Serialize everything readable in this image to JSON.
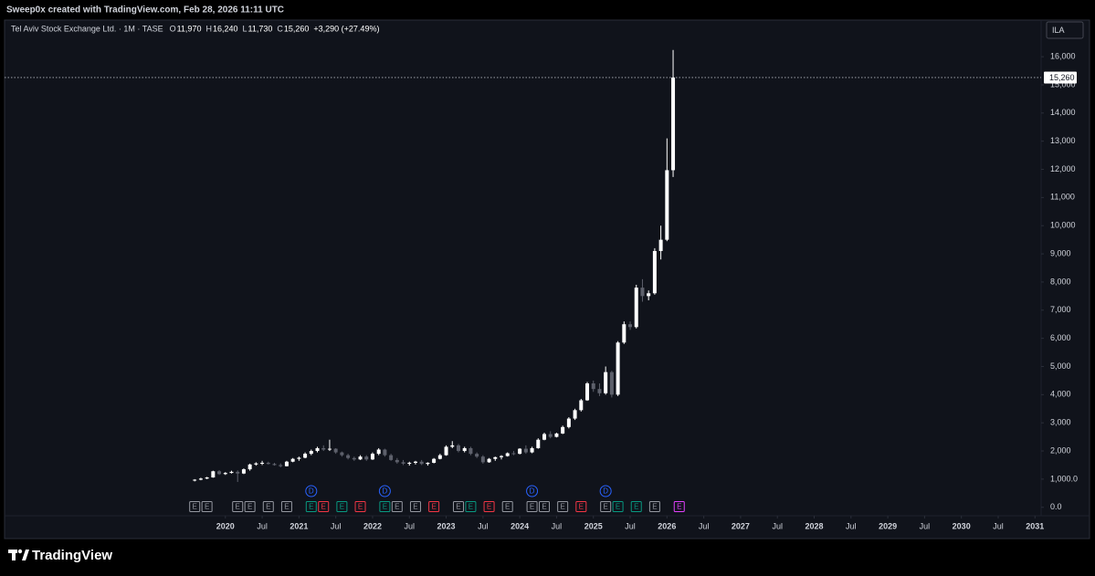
{
  "header": {
    "credit": "Sweep0x created with TradingView.com, Feb 28, 2026 11:11 UTC"
  },
  "branding": {
    "logo_text": "TradingView"
  },
  "currency_button": "ILA",
  "legend": {
    "symbol": "Tel Aviv Stock Exchange Ltd. · 1M · TASE",
    "fields": [
      {
        "key": "O",
        "value": "11,970"
      },
      {
        "key": "H",
        "value": "16,240"
      },
      {
        "key": "L",
        "value": "11,730"
      },
      {
        "key": "C",
        "value": "15,260"
      }
    ],
    "change": "+3,290 (+27.49%)"
  },
  "chart_data": {
    "type": "candlestick",
    "grid": false,
    "xlim": [
      "2017-01",
      "2031-02"
    ],
    "ylim": [
      -300,
      17300
    ],
    "yticks": [
      {
        "value": 0,
        "label": "0.0"
      },
      {
        "value": 1000,
        "label": "1,000.0"
      },
      {
        "value": 2000,
        "label": "2,000"
      },
      {
        "value": 3000,
        "label": "3,000"
      },
      {
        "value": 4000,
        "label": "4,000"
      },
      {
        "value": 5000,
        "label": "5,000"
      },
      {
        "value": 6000,
        "label": "6,000"
      },
      {
        "value": 7000,
        "label": "7,000"
      },
      {
        "value": 8000,
        "label": "8,000"
      },
      {
        "value": 9000,
        "label": "9,000"
      },
      {
        "value": 10000,
        "label": "10,000"
      },
      {
        "value": 11000,
        "label": "11,000"
      },
      {
        "value": 12000,
        "label": "12,000"
      },
      {
        "value": 13000,
        "label": "13,000"
      },
      {
        "value": 14000,
        "label": "14,000"
      },
      {
        "value": 15000,
        "label": "15,000"
      },
      {
        "value": 16000,
        "label": "16,000"
      }
    ],
    "xticks": [
      {
        "value": "2020-01",
        "label": "2020"
      },
      {
        "value": "2020-07",
        "label": "Jul"
      },
      {
        "value": "2021-01",
        "label": "2021"
      },
      {
        "value": "2021-07",
        "label": "Jul"
      },
      {
        "value": "2022-01",
        "label": "2022"
      },
      {
        "value": "2022-07",
        "label": "Jul"
      },
      {
        "value": "2023-01",
        "label": "2023"
      },
      {
        "value": "2023-07",
        "label": "Jul"
      },
      {
        "value": "2024-01",
        "label": "2024"
      },
      {
        "value": "2024-07",
        "label": "Jul"
      },
      {
        "value": "2025-01",
        "label": "2025"
      },
      {
        "value": "2025-07",
        "label": "Jul"
      },
      {
        "value": "2026-01",
        "label": "2026"
      },
      {
        "value": "2026-07",
        "label": "Jul"
      },
      {
        "value": "2027-01",
        "label": "2027"
      },
      {
        "value": "2027-07",
        "label": "Jul"
      },
      {
        "value": "2028-01",
        "label": "2028"
      },
      {
        "value": "2028-07",
        "label": "Jul"
      },
      {
        "value": "2029-01",
        "label": "2029"
      },
      {
        "value": "2029-07",
        "label": "Jul"
      },
      {
        "value": "2030-01",
        "label": "2030"
      },
      {
        "value": "2030-07",
        "label": "Jul"
      },
      {
        "value": "2031-01",
        "label": "2031"
      }
    ],
    "last_price": {
      "value": 15260,
      "label": "15,260"
    },
    "up_color": "#ffffff",
    "down_color": "#5d606b",
    "x": [
      "2019-08",
      "2019-09",
      "2019-10",
      "2019-11",
      "2019-12",
      "2020-01",
      "2020-02",
      "2020-03",
      "2020-04",
      "2020-05",
      "2020-06",
      "2020-07",
      "2020-08",
      "2020-09",
      "2020-10",
      "2020-11",
      "2020-12",
      "2021-01",
      "2021-02",
      "2021-03",
      "2021-04",
      "2021-05",
      "2021-06",
      "2021-07",
      "2021-08",
      "2021-09",
      "2021-10",
      "2021-11",
      "2021-12",
      "2022-01",
      "2022-02",
      "2022-03",
      "2022-04",
      "2022-05",
      "2022-06",
      "2022-07",
      "2022-08",
      "2022-09",
      "2022-10",
      "2022-11",
      "2022-12",
      "2023-01",
      "2023-02",
      "2023-03",
      "2023-04",
      "2023-05",
      "2023-06",
      "2023-07",
      "2023-08",
      "2023-09",
      "2023-10",
      "2023-11",
      "2023-12",
      "2024-01",
      "2024-02",
      "2024-03",
      "2024-04",
      "2024-05",
      "2024-06",
      "2024-07",
      "2024-08",
      "2024-09",
      "2024-10",
      "2024-11",
      "2024-12",
      "2025-01",
      "2025-02",
      "2025-03",
      "2025-04",
      "2025-05",
      "2025-06",
      "2025-07",
      "2025-08",
      "2025-09",
      "2025-10",
      "2025-11",
      "2025-12",
      "2026-01",
      "2026-02"
    ],
    "open": [
      950,
      980,
      1020,
      1060,
      1280,
      1180,
      1220,
      1260,
      1200,
      1350,
      1520,
      1560,
      1580,
      1540,
      1500,
      1460,
      1620,
      1720,
      1760,
      1900,
      2000,
      2100,
      2050,
      2080,
      1950,
      1850,
      1750,
      1700,
      1800,
      1700,
      1900,
      2050,
      1850,
      1680,
      1600,
      1550,
      1580,
      1620,
      1540,
      1580,
      1720,
      1850,
      2150,
      2200,
      2000,
      2100,
      1900,
      1800,
      1600,
      1720,
      1780,
      1820,
      1920,
      1900,
      2080,
      1950,
      2100,
      2400,
      2600,
      2500,
      2620,
      2850,
      3150,
      3450,
      3800,
      4400,
      4200,
      4050,
      4800,
      4000,
      5850,
      6500,
      6400,
      7800,
      7500,
      7600,
      9100,
      9500,
      11970
    ],
    "high": [
      1000,
      1050,
      1080,
      1300,
      1320,
      1250,
      1300,
      1310,
      1380,
      1550,
      1600,
      1650,
      1620,
      1580,
      1560,
      1650,
      1750,
      1800,
      1950,
      2050,
      2150,
      2200,
      2400,
      2100,
      1980,
      1900,
      1800,
      1850,
      1850,
      1950,
      2100,
      2080,
      1900,
      1750,
      1680,
      1620,
      1650,
      1680,
      1600,
      1750,
      1900,
      2200,
      2350,
      2250,
      2150,
      2150,
      1950,
      1850,
      1750,
      1800,
      1850,
      1950,
      2000,
      2100,
      2200,
      2150,
      2450,
      2650,
      2700,
      2650,
      2900,
      3200,
      3500,
      3850,
      4450,
      4500,
      4400,
      5000,
      4850,
      5900,
      6600,
      6600,
      7900,
      8100,
      7700,
      9200,
      10000,
      13100,
      16240
    ],
    "low": [
      920,
      960,
      1000,
      1050,
      1150,
      1150,
      1200,
      900,
      1180,
      1300,
      1480,
      1500,
      1520,
      1480,
      1420,
      1450,
      1600,
      1650,
      1740,
      1850,
      1950,
      2000,
      2000,
      1900,
      1800,
      1700,
      1650,
      1680,
      1650,
      1680,
      1850,
      1800,
      1650,
      1550,
      1500,
      1480,
      1520,
      1500,
      1480,
      1560,
      1700,
      1830,
      2100,
      1950,
      1950,
      1850,
      1750,
      1550,
      1580,
      1650,
      1700,
      1800,
      1850,
      1880,
      1900,
      1920,
      2080,
      2380,
      2450,
      2480,
      2600,
      2800,
      3100,
      3400,
      3780,
      4100,
      3950,
      4000,
      3900,
      3950,
      5800,
      6300,
      6350,
      7300,
      7350,
      7550,
      8800,
      9450,
      11730
    ],
    "close": [
      980,
      1020,
      1060,
      1280,
      1180,
      1220,
      1260,
      1200,
      1350,
      1520,
      1560,
      1580,
      1540,
      1500,
      1460,
      1620,
      1720,
      1760,
      1900,
      2000,
      2100,
      2050,
      2080,
      1950,
      1850,
      1750,
      1700,
      1800,
      1700,
      1900,
      2050,
      1850,
      1680,
      1600,
      1550,
      1580,
      1620,
      1540,
      1580,
      1720,
      1850,
      2150,
      2200,
      2000,
      2100,
      1900,
      1800,
      1600,
      1720,
      1780,
      1820,
      1920,
      1900,
      2080,
      1950,
      2100,
      2400,
      2600,
      2500,
      2620,
      2850,
      3150,
      3450,
      3800,
      4400,
      4200,
      4050,
      4800,
      4000,
      5850,
      6500,
      6400,
      7800,
      7500,
      7600,
      9100,
      9500,
      11970,
      15260
    ],
    "dividends": [
      {
        "x": "2021-03",
        "label": "D",
        "color": "#2962ff"
      },
      {
        "x": "2022-03",
        "label": "D",
        "color": "#2962ff"
      },
      {
        "x": "2024-03",
        "label": "D",
        "color": "#2962ff"
      },
      {
        "x": "2025-03",
        "label": "D",
        "color": "#2962ff"
      }
    ],
    "earnings": [
      {
        "x": "2019-08",
        "label": "E",
        "color": "#9598a1"
      },
      {
        "x": "2019-10",
        "label": "E",
        "color": "#9598a1"
      },
      {
        "x": "2020-03",
        "label": "E",
        "color": "#9598a1"
      },
      {
        "x": "2020-05",
        "label": "E",
        "color": "#9598a1"
      },
      {
        "x": "2020-08",
        "label": "E",
        "color": "#9598a1"
      },
      {
        "x": "2020-11",
        "label": "E",
        "color": "#9598a1"
      },
      {
        "x": "2021-03",
        "label": "E",
        "color": "#089981"
      },
      {
        "x": "2021-05",
        "label": "E",
        "color": "#f23645"
      },
      {
        "x": "2021-08",
        "label": "E",
        "color": "#089981"
      },
      {
        "x": "2021-11",
        "label": "E",
        "color": "#f23645"
      },
      {
        "x": "2022-03",
        "label": "E",
        "color": "#089981"
      },
      {
        "x": "2022-05",
        "label": "E",
        "color": "#9598a1"
      },
      {
        "x": "2022-08",
        "label": "E",
        "color": "#9598a1"
      },
      {
        "x": "2022-11",
        "label": "E",
        "color": "#f23645"
      },
      {
        "x": "2023-03",
        "label": "E",
        "color": "#9598a1"
      },
      {
        "x": "2023-05",
        "label": "E",
        "color": "#089981"
      },
      {
        "x": "2023-08",
        "label": "E",
        "color": "#f23645"
      },
      {
        "x": "2023-11",
        "label": "E",
        "color": "#9598a1"
      },
      {
        "x": "2024-03",
        "label": "E",
        "color": "#9598a1"
      },
      {
        "x": "2024-05",
        "label": "E",
        "color": "#9598a1"
      },
      {
        "x": "2024-08",
        "label": "E",
        "color": "#9598a1"
      },
      {
        "x": "2024-11",
        "label": "E",
        "color": "#f23645"
      },
      {
        "x": "2025-03",
        "label": "E",
        "color": "#9598a1"
      },
      {
        "x": "2025-05",
        "label": "E",
        "color": "#089981"
      },
      {
        "x": "2025-08",
        "label": "E",
        "color": "#089981"
      },
      {
        "x": "2025-11",
        "label": "E",
        "color": "#9598a1"
      },
      {
        "x": "2026-03",
        "label": "E",
        "color": "#e040fb"
      }
    ]
  }
}
